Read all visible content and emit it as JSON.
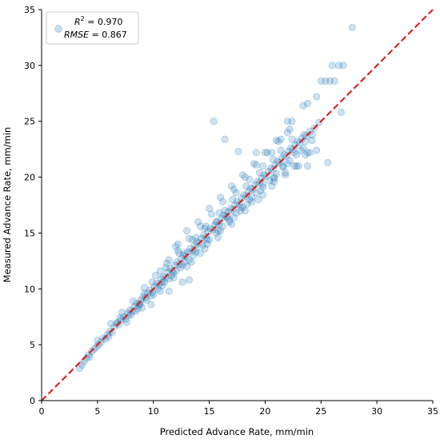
{
  "chart_data": {
    "type": "scatter",
    "xlabel": "Predicted Advance Rate, mm/min",
    "ylabel": "Measured Advance Rate, mm/min",
    "xlim": [
      0,
      35
    ],
    "ylim": [
      0,
      35
    ],
    "xticks": [
      "0",
      "5",
      "10",
      "15",
      "20",
      "25",
      "30",
      "35"
    ],
    "yticks": [
      "0",
      "5",
      "10",
      "15",
      "20",
      "25",
      "30",
      "35"
    ],
    "grid": false,
    "legend_position": "top-left",
    "legend": {
      "r2_label": "R",
      "r2_sup": "2",
      "r2_value": " = 0.970",
      "rmse_label": "RMSE",
      "rmse_value": " = 0.867"
    },
    "colors": {
      "points": "#1f77b4",
      "fit_line": "#d62728",
      "axis": "#000000"
    },
    "reference_line": {
      "x": [
        0,
        35
      ],
      "y": [
        0,
        35
      ],
      "style": "dashed"
    },
    "series": [
      {
        "values": [
          [
            3.4,
            2.9
          ],
          [
            3.6,
            3.2
          ],
          [
            3.8,
            3.5
          ],
          [
            4.0,
            3.8
          ],
          [
            4.2,
            4.1
          ],
          [
            4.3,
            3.9
          ],
          [
            4.5,
            4.4
          ],
          [
            4.7,
            4.6
          ],
          [
            4.9,
            4.8
          ],
          [
            5.1,
            5.0
          ],
          [
            5.3,
            5.2
          ],
          [
            5.5,
            5.6
          ],
          [
            5.7,
            5.5
          ],
          [
            5.9,
            5.9
          ],
          [
            6.1,
            6.2
          ],
          [
            6.3,
            6.1
          ],
          [
            6.5,
            6.6
          ],
          [
            6.7,
            6.9
          ],
          [
            6.9,
            6.8
          ],
          [
            7.1,
            7.2
          ],
          [
            7.3,
            7.5
          ],
          [
            7.5,
            7.3
          ],
          [
            7.7,
            7.8
          ],
          [
            7.9,
            8.1
          ],
          [
            8.1,
            8.0
          ],
          [
            8.3,
            8.4
          ],
          [
            8.5,
            8.7
          ],
          [
            8.7,
            8.5
          ],
          [
            8.9,
            9.0
          ],
          [
            9.1,
            9.3
          ],
          [
            9.3,
            9.2
          ],
          [
            9.5,
            9.6
          ],
          [
            9.7,
            9.9
          ],
          [
            9.9,
            9.7
          ],
          [
            10.1,
            10.2
          ],
          [
            10.3,
            10.5
          ],
          [
            10.5,
            10.4
          ],
          [
            10.7,
            10.9
          ],
          [
            10.9,
            11.1
          ],
          [
            11.1,
            11.0
          ],
          [
            11.3,
            11.5
          ],
          [
            11.5,
            11.8
          ],
          [
            11.7,
            11.6
          ],
          [
            11.9,
            12.1
          ],
          [
            12.1,
            12.4
          ],
          [
            12.3,
            12.2
          ],
          [
            12.5,
            12.7
          ],
          [
            12.7,
            13.0
          ],
          [
            12.9,
            12.9
          ],
          [
            13.1,
            13.3
          ],
          [
            13.3,
            13.6
          ],
          [
            13.5,
            13.4
          ],
          [
            13.7,
            13.9
          ],
          [
            13.9,
            14.2
          ],
          [
            14.1,
            14.1
          ],
          [
            14.3,
            14.5
          ],
          [
            14.5,
            14.8
          ],
          [
            14.7,
            14.6
          ],
          [
            14.9,
            15.1
          ],
          [
            15.1,
            15.4
          ],
          [
            15.3,
            15.3
          ],
          [
            15.5,
            15.7
          ],
          [
            15.7,
            16.0
          ],
          [
            15.9,
            15.8
          ],
          [
            16.1,
            16.3
          ],
          [
            16.3,
            16.6
          ],
          [
            16.5,
            16.5
          ],
          [
            16.7,
            16.9
          ],
          [
            16.9,
            17.2
          ],
          [
            17.1,
            17.1
          ],
          [
            17.3,
            17.5
          ],
          [
            17.5,
            17.8
          ],
          [
            17.7,
            17.6
          ],
          [
            17.9,
            18.1
          ],
          [
            18.1,
            18.4
          ],
          [
            18.3,
            18.3
          ],
          [
            18.5,
            18.7
          ],
          [
            18.7,
            19.0
          ],
          [
            18.9,
            18.9
          ],
          [
            19.1,
            19.3
          ],
          [
            19.3,
            19.6
          ],
          [
            19.5,
            19.5
          ],
          [
            19.7,
            19.9
          ],
          [
            19.9,
            20.2
          ],
          [
            20.1,
            20.1
          ],
          [
            20.3,
            20.5
          ],
          [
            20.5,
            20.8
          ],
          [
            20.7,
            20.7
          ],
          [
            20.9,
            21.1
          ],
          [
            21.1,
            21.4
          ],
          [
            21.3,
            21.3
          ],
          [
            21.5,
            21.7
          ],
          [
            21.7,
            22.0
          ],
          [
            21.9,
            21.9
          ],
          [
            22.1,
            22.3
          ],
          [
            22.3,
            22.6
          ],
          [
            22.5,
            22.5
          ],
          [
            22.7,
            22.9
          ],
          [
            22.9,
            23.2
          ],
          [
            23.1,
            23.1
          ],
          [
            23.3,
            23.5
          ],
          [
            23.5,
            23.8
          ],
          [
            23.7,
            23.7
          ],
          [
            24.0,
            24.1
          ],
          [
            24.4,
            24.4
          ],
          [
            24.8,
            24.9
          ],
          [
            5.0,
            5.4
          ],
          [
            6.0,
            5.7
          ],
          [
            7.0,
            7.4
          ],
          [
            8.0,
            7.7
          ],
          [
            8.6,
            8.2
          ],
          [
            9.2,
            9.6
          ],
          [
            10.0,
            9.5
          ],
          [
            10.8,
            10.3
          ],
          [
            11.4,
            10.9
          ],
          [
            12.0,
            11.6
          ],
          [
            12.6,
            12.1
          ],
          [
            13.2,
            12.6
          ],
          [
            13.8,
            13.3
          ],
          [
            14.4,
            13.9
          ],
          [
            15.0,
            14.4
          ],
          [
            15.6,
            15.0
          ],
          [
            16.2,
            15.6
          ],
          [
            16.8,
            16.2
          ],
          [
            17.4,
            16.8
          ],
          [
            18.0,
            17.3
          ],
          [
            18.6,
            18.0
          ],
          [
            19.2,
            18.6
          ],
          [
            19.8,
            19.1
          ],
          [
            20.4,
            19.7
          ],
          [
            21.0,
            20.3
          ],
          [
            21.6,
            20.9
          ],
          [
            22.2,
            21.5
          ],
          [
            22.8,
            22.0
          ],
          [
            23.4,
            22.6
          ],
          [
            6.2,
            6.9
          ],
          [
            7.2,
            7.9
          ],
          [
            8.2,
            8.9
          ],
          [
            9.2,
            10.1
          ],
          [
            10.2,
            11.2
          ],
          [
            11.2,
            12.3
          ],
          [
            12.2,
            13.4
          ],
          [
            13.2,
            14.5
          ],
          [
            14.2,
            15.6
          ],
          [
            15.2,
            16.7
          ],
          [
            16.2,
            17.8
          ],
          [
            17.2,
            18.9
          ],
          [
            18.2,
            20.0
          ],
          [
            19.2,
            21.1
          ],
          [
            20.2,
            22.2
          ],
          [
            21.2,
            23.2
          ],
          [
            22.2,
            24.3
          ],
          [
            12.0,
            13.8
          ],
          [
            12.2,
            14.0
          ],
          [
            13.0,
            15.2
          ],
          [
            14.0,
            16.0
          ],
          [
            15.0,
            17.2
          ],
          [
            16.0,
            18.2
          ],
          [
            17.0,
            19.2
          ],
          [
            18.0,
            20.2
          ],
          [
            19.0,
            21.2
          ],
          [
            20.0,
            22.2
          ],
          [
            21.0,
            23.3
          ],
          [
            22.0,
            24.0
          ],
          [
            13.4,
            12.4
          ],
          [
            14.6,
            13.6
          ],
          [
            15.8,
            14.6
          ],
          [
            17.0,
            15.8
          ],
          [
            18.2,
            17.0
          ],
          [
            19.4,
            18.0
          ],
          [
            20.6,
            19.2
          ],
          [
            21.8,
            20.4
          ],
          [
            23.0,
            21.0
          ],
          [
            23.8,
            22.2
          ],
          [
            24.2,
            23.3
          ],
          [
            15.4,
            25.0
          ],
          [
            16.4,
            23.4
          ],
          [
            17.6,
            22.3
          ],
          [
            19.2,
            22.2
          ],
          [
            20.6,
            22.2
          ],
          [
            21.4,
            23.4
          ],
          [
            22.0,
            25.0
          ],
          [
            22.4,
            25.0
          ],
          [
            23.4,
            26.4
          ],
          [
            23.8,
            26.6
          ],
          [
            24.6,
            27.2
          ],
          [
            25.0,
            28.6
          ],
          [
            25.4,
            28.6
          ],
          [
            25.8,
            28.6
          ],
          [
            26.2,
            28.6
          ],
          [
            26.0,
            30.0
          ],
          [
            26.6,
            30.0
          ],
          [
            27.0,
            30.0
          ],
          [
            26.8,
            25.8
          ],
          [
            25.6,
            21.3
          ],
          [
            24.6,
            22.4
          ],
          [
            22.6,
            21.0
          ],
          [
            23.6,
            22.0
          ],
          [
            24.2,
            23.8
          ],
          [
            27.8,
            33.4
          ],
          [
            8.4,
            8.0
          ],
          [
            8.8,
            8.7
          ],
          [
            9.4,
            9.0
          ],
          [
            10.4,
            10.0
          ],
          [
            11.0,
            10.6
          ],
          [
            11.6,
            11.2
          ],
          [
            12.4,
            11.9
          ],
          [
            13.6,
            13.0
          ],
          [
            14.8,
            14.0
          ],
          [
            16.0,
            15.2
          ],
          [
            17.2,
            16.4
          ],
          [
            18.4,
            17.6
          ],
          [
            19.6,
            18.8
          ],
          [
            20.8,
            19.9
          ],
          [
            22.0,
            21.2
          ],
          [
            23.2,
            22.4
          ],
          [
            7.6,
            7.0
          ],
          [
            9.0,
            8.3
          ],
          [
            10.6,
            9.8
          ],
          [
            11.8,
            11.0
          ],
          [
            13.0,
            12.0
          ],
          [
            14.2,
            13.2
          ],
          [
            9.9,
            10.6
          ],
          [
            11.1,
            11.9
          ],
          [
            12.3,
            13.2
          ],
          [
            13.5,
            14.4
          ],
          [
            14.7,
            15.6
          ],
          [
            15.9,
            16.8
          ],
          [
            17.1,
            18.0
          ],
          [
            18.3,
            19.2
          ],
          [
            19.5,
            20.4
          ],
          [
            20.7,
            21.6
          ],
          [
            15.6,
            16.0
          ],
          [
            16.6,
            16.4
          ],
          [
            17.8,
            17.3
          ],
          [
            18.8,
            18.2
          ],
          [
            19.8,
            19.4
          ],
          [
            20.8,
            20.0
          ],
          [
            21.6,
            21.0
          ],
          [
            22.6,
            22.2
          ],
          [
            23.6,
            23.2
          ],
          [
            24.0,
            22.2
          ],
          [
            10.6,
            11.6
          ],
          [
            11.4,
            12.6
          ],
          [
            12.8,
            13.2
          ],
          [
            13.8,
            14.6
          ],
          [
            14.6,
            15.4
          ],
          [
            16.4,
            17.0
          ],
          [
            17.4,
            18.6
          ],
          [
            18.6,
            19.8
          ],
          [
            19.8,
            21.0
          ],
          [
            21.4,
            22.4
          ],
          [
            22.4,
            23.4
          ],
          [
            6.8,
            7.0
          ],
          [
            7.8,
            7.6
          ],
          [
            8.8,
            8.6
          ],
          [
            9.8,
            9.4
          ],
          [
            10.8,
            10.6
          ],
          [
            11.8,
            11.4
          ],
          [
            12.8,
            12.4
          ],
          [
            13.8,
            13.6
          ],
          [
            14.8,
            14.4
          ],
          [
            15.8,
            15.2
          ],
          [
            16.8,
            16.0
          ],
          [
            17.8,
            17.0
          ],
          [
            18.8,
            17.8
          ],
          [
            19.8,
            18.4
          ],
          [
            20.8,
            19.6
          ],
          [
            21.8,
            20.2
          ],
          [
            22.8,
            21.0
          ],
          [
            23.8,
            21.0
          ],
          [
            13.2,
            10.8
          ],
          [
            11.4,
            9.8
          ],
          [
            9.8,
            8.6
          ],
          [
            12.6,
            10.6
          ]
        ]
      }
    ]
  }
}
